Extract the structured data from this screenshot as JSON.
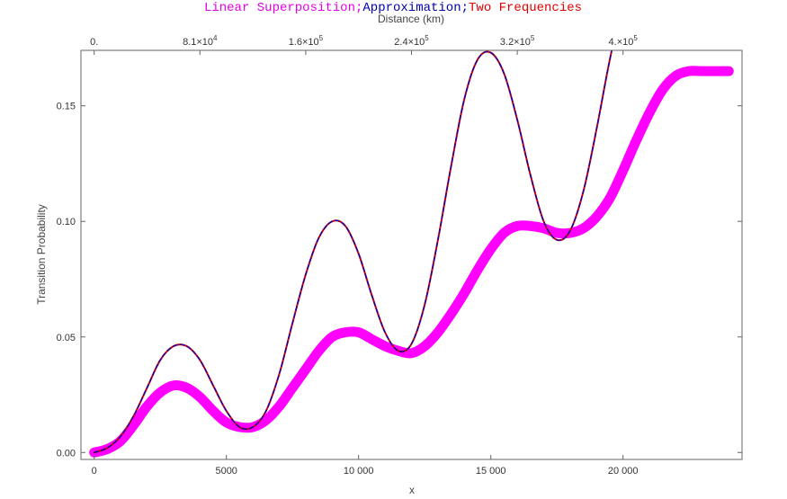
{
  "chart_data": {
    "type": "line",
    "title_parts": [
      {
        "text": "Linear Superposition;",
        "color": "#e600e6"
      },
      {
        "text": "Approximation;",
        "color": "#0000b3"
      },
      {
        "text": "Two Frequencies",
        "color": "#e00000"
      }
    ],
    "xlabel": "x",
    "ylabel": "Transition Probability",
    "x2label": "Distance (km)",
    "xlim": [
      -500,
      24500
    ],
    "ylim": [
      -0.003,
      0.174
    ],
    "x_ticks": [
      0,
      5000,
      10000,
      15000,
      20000
    ],
    "x_tick_labels": [
      "0",
      "5000",
      "10 000",
      "15 000",
      "20 000"
    ],
    "y_ticks": [
      0.0,
      0.05,
      0.1,
      0.15
    ],
    "y_tick_labels": [
      "0.00",
      "0.05",
      "0.10",
      "0.15"
    ],
    "x2_ticks": [
      0,
      4000,
      8000,
      12000,
      16000,
      20000
    ],
    "x2_tick_labels": [
      {
        "mantissa": "0.",
        "exp": ""
      },
      {
        "mantissa": "8.1×10",
        "exp": "4"
      },
      {
        "mantissa": "1.6×10",
        "exp": "5"
      },
      {
        "mantissa": "2.4×10",
        "exp": "5"
      },
      {
        "mantissa": "3.2×10",
        "exp": "5"
      },
      {
        "mantissa": "4.×10",
        "exp": "5"
      }
    ],
    "series": [
      {
        "name": "Linear Superposition",
        "color": "#ff00ff",
        "style": "thick",
        "x": [
          0,
          500,
          1000,
          1500,
          2000,
          2500,
          3000,
          3500,
          4000,
          4500,
          5000,
          5500,
          6000,
          6500,
          7000,
          7500,
          8000,
          8500,
          9000,
          9500,
          10000,
          10500,
          11000,
          11500,
          12000,
          12500,
          13000,
          13500,
          14000,
          14500,
          15000,
          15500,
          16000,
          16500,
          17000,
          17500,
          18000,
          18500,
          19000,
          19500,
          20000,
          20500,
          21000,
          21500,
          22000,
          22500,
          23000,
          23500,
          24000
        ],
        "y": [
          0.0,
          0.0015,
          0.005,
          0.012,
          0.02,
          0.026,
          0.029,
          0.028,
          0.024,
          0.018,
          0.013,
          0.011,
          0.011,
          0.014,
          0.02,
          0.028,
          0.036,
          0.044,
          0.05,
          0.052,
          0.052,
          0.049,
          0.046,
          0.044,
          0.043,
          0.046,
          0.052,
          0.06,
          0.069,
          0.079,
          0.088,
          0.095,
          0.098,
          0.098,
          0.097,
          0.095,
          0.095,
          0.097,
          0.102,
          0.11,
          0.122,
          0.135,
          0.147,
          0.157,
          0.163,
          0.165,
          0.165,
          0.165,
          0.165
        ]
      },
      {
        "name": "Approximation",
        "color": "#0000b3",
        "style": "dashed",
        "x": [
          0,
          500,
          1000,
          1500,
          2000,
          2500,
          3000,
          3500,
          4000,
          4500,
          5000,
          5500,
          6000,
          6500,
          7000,
          7500,
          8000,
          8500,
          9000,
          9500,
          10000,
          10500,
          11000,
          11500,
          12000,
          12500,
          13000,
          13500,
          14000,
          14500,
          15000,
          15500,
          16000,
          16500,
          17000,
          17500,
          18000,
          18500,
          19000,
          19500,
          20000,
          20500
        ],
        "y": [
          0.0,
          0.002,
          0.007,
          0.016,
          0.028,
          0.04,
          0.046,
          0.046,
          0.04,
          0.029,
          0.018,
          0.011,
          0.011,
          0.018,
          0.034,
          0.056,
          0.077,
          0.093,
          0.1,
          0.098,
          0.086,
          0.068,
          0.052,
          0.044,
          0.047,
          0.064,
          0.092,
          0.124,
          0.153,
          0.17,
          0.173,
          0.164,
          0.144,
          0.12,
          0.1,
          0.092,
          0.096,
          0.113,
          0.14,
          0.17,
          0.195,
          0.21
        ]
      },
      {
        "name": "Two Frequencies",
        "color": "#e00000",
        "style": "solid",
        "x": [
          0,
          500,
          1000,
          1500,
          2000,
          2500,
          3000,
          3500,
          4000,
          4500,
          5000,
          5500,
          6000,
          6500,
          7000,
          7500,
          8000,
          8500,
          9000,
          9500,
          10000,
          10500,
          11000,
          11500,
          12000,
          12500,
          13000,
          13500,
          14000,
          14500,
          15000,
          15500,
          16000,
          16500,
          17000,
          17500,
          18000,
          18500,
          19000,
          19500,
          20000,
          20500
        ],
        "y": [
          0.0,
          0.002,
          0.007,
          0.016,
          0.028,
          0.04,
          0.046,
          0.046,
          0.04,
          0.029,
          0.018,
          0.011,
          0.011,
          0.018,
          0.034,
          0.056,
          0.077,
          0.093,
          0.1,
          0.098,
          0.086,
          0.068,
          0.052,
          0.044,
          0.047,
          0.064,
          0.092,
          0.124,
          0.153,
          0.17,
          0.173,
          0.164,
          0.144,
          0.12,
          0.1,
          0.092,
          0.096,
          0.113,
          0.14,
          0.17,
          0.195,
          0.21
        ]
      }
    ]
  }
}
